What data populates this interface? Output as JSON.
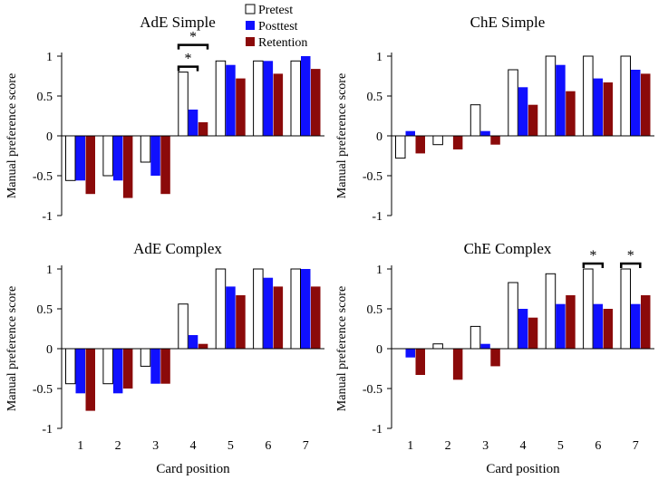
{
  "chart_data": [
    {
      "type": "bar",
      "title": "AdE Simple",
      "ylabel": "Manual preference score",
      "xlabel": "",
      "ylim": [
        -1,
        1
      ],
      "yticks": [
        1,
        0.5,
        0,
        -0.5,
        -1
      ],
      "ytick_labels": [
        "1",
        "0.5",
        "0",
        "-0.5",
        "-1"
      ],
      "categories": [
        "1",
        "2",
        "3",
        "4",
        "5",
        "6",
        "7"
      ],
      "show_xtick_labels": false,
      "series": [
        {
          "name": "Pretest",
          "values": [
            -0.56,
            -0.5,
            -0.33,
            0.8,
            0.94,
            0.94,
            0.94
          ]
        },
        {
          "name": "Posttest",
          "values": [
            -0.56,
            -0.56,
            -0.5,
            0.33,
            0.89,
            0.94,
            1.0
          ]
        },
        {
          "name": "Retention",
          "values": [
            -0.73,
            -0.78,
            -0.73,
            0.17,
            0.72,
            0.78,
            0.84
          ]
        }
      ],
      "significance": [
        {
          "category": "4",
          "from": "Pretest",
          "to": "Posttest",
          "label": "*"
        },
        {
          "category": "4",
          "from": "Pretest",
          "to": "Retention",
          "label": "*"
        }
      ]
    },
    {
      "type": "bar",
      "title": "ChE Simple",
      "ylabel": "Manual preference score",
      "xlabel": "",
      "ylim": [
        -1,
        1
      ],
      "yticks": [
        1,
        0.5,
        0,
        -0.5,
        -1
      ],
      "ytick_labels": [
        "1",
        "0.5",
        "0",
        "-0.5",
        "-1"
      ],
      "categories": [
        "1",
        "2",
        "3",
        "4",
        "5",
        "6",
        "7"
      ],
      "show_xtick_labels": false,
      "series": [
        {
          "name": "Pretest",
          "values": [
            -0.28,
            -0.11,
            0.39,
            0.83,
            1.0,
            1.0,
            1.0
          ]
        },
        {
          "name": "Posttest",
          "values": [
            0.06,
            0.0,
            0.06,
            0.61,
            0.89,
            0.72,
            0.83
          ]
        },
        {
          "name": "Retention",
          "values": [
            -0.22,
            -0.17,
            -0.11,
            0.39,
            0.56,
            0.67,
            0.78
          ]
        }
      ],
      "significance": []
    },
    {
      "type": "bar",
      "title": "AdE Complex",
      "ylabel": "Manual preference score",
      "xlabel": "Card position",
      "ylim": [
        -1,
        1
      ],
      "yticks": [
        1,
        0.5,
        0,
        -0.5,
        -1
      ],
      "ytick_labels": [
        "1",
        "0.5",
        "0",
        "-0.5",
        "-1"
      ],
      "categories": [
        "1",
        "2",
        "3",
        "4",
        "5",
        "6",
        "7"
      ],
      "show_xtick_labels": true,
      "series": [
        {
          "name": "Pretest",
          "values": [
            -0.44,
            -0.44,
            -0.22,
            0.56,
            1.0,
            1.0,
            1.0
          ]
        },
        {
          "name": "Posttest",
          "values": [
            -0.56,
            -0.56,
            -0.44,
            0.17,
            0.78,
            0.89,
            1.0
          ]
        },
        {
          "name": "Retention",
          "values": [
            -0.78,
            -0.5,
            -0.44,
            0.06,
            0.67,
            0.78,
            0.78
          ]
        }
      ],
      "significance": []
    },
    {
      "type": "bar",
      "title": "ChE Complex",
      "ylabel": "Manual preference score",
      "xlabel": "Card position",
      "ylim": [
        -1,
        1
      ],
      "yticks": [
        1,
        0.5,
        0,
        -0.5,
        -1
      ],
      "ytick_labels": [
        "1",
        "0.5",
        "0",
        "-0.5",
        "-1"
      ],
      "categories": [
        "1",
        "2",
        "3",
        "4",
        "5",
        "6",
        "7"
      ],
      "show_xtick_labels": true,
      "series": [
        {
          "name": "Pretest",
          "values": [
            0.0,
            0.06,
            0.28,
            0.83,
            0.94,
            1.0,
            1.0
          ]
        },
        {
          "name": "Posttest",
          "values": [
            -0.11,
            0.0,
            0.06,
            0.5,
            0.56,
            0.56,
            0.56
          ]
        },
        {
          "name": "Retention",
          "values": [
            -0.33,
            -0.39,
            -0.22,
            0.39,
            0.67,
            0.5,
            0.67
          ]
        }
      ],
      "significance": [
        {
          "category": "6",
          "from": "Pretest",
          "to": "Posttest",
          "label": "*"
        },
        {
          "category": "7",
          "from": "Pretest",
          "to": "Posttest",
          "label": "*"
        }
      ]
    }
  ],
  "legend": {
    "items": [
      {
        "name": "Pretest",
        "color": "#ffffff"
      },
      {
        "name": "Posttest",
        "color": "#1010ff"
      },
      {
        "name": "Retention",
        "color": "#8b0a0a"
      }
    ]
  },
  "colors": {
    "Pretest": "#ffffff",
    "Posttest": "#1010ff",
    "Retention": "#8b0a0a",
    "pretest_outline": "#000000",
    "axis": "#000000"
  }
}
